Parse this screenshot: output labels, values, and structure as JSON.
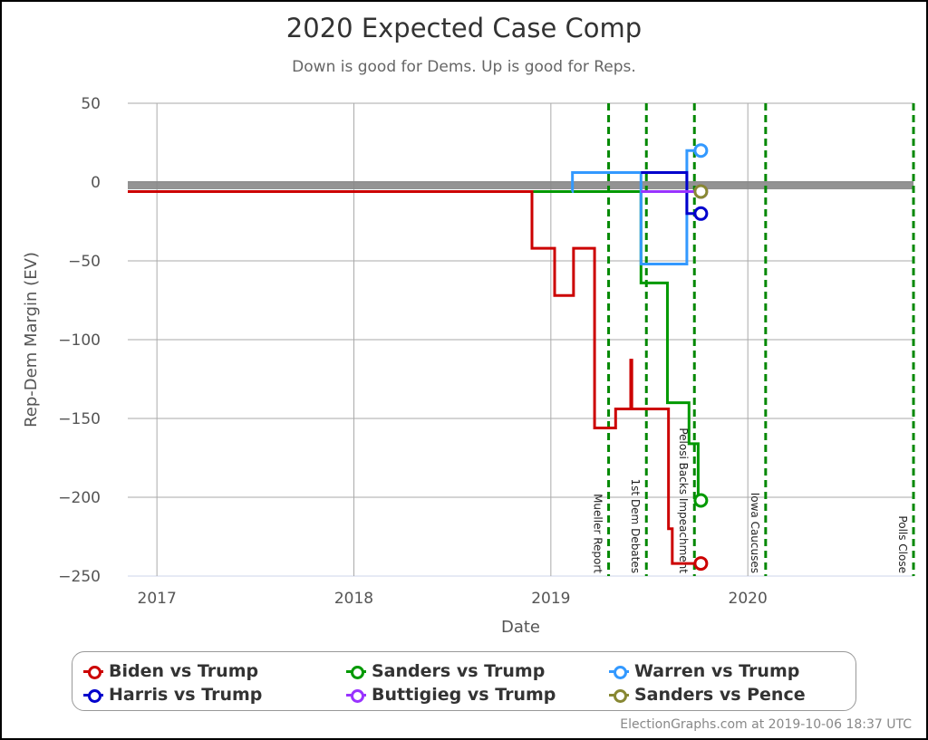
{
  "chart_data": {
    "type": "line",
    "title": "2020 Expected Case Comp",
    "subtitle": "Down is good for Dems. Up is good for Reps.",
    "xlabel": "Date",
    "ylabel": "Rep-Dem Margin (EV)",
    "xlim": [
      "2016-11-08",
      "2020-11-03"
    ],
    "ylim": [
      -250,
      50
    ],
    "x_ticks": [
      {
        "date": "2017-01-01",
        "label": "2017"
      },
      {
        "date": "2018-01-01",
        "label": "2018"
      },
      {
        "date": "2019-01-01",
        "label": "2019"
      },
      {
        "date": "2020-01-01",
        "label": "2020"
      }
    ],
    "y_ticks": [
      50,
      0,
      -50,
      -100,
      -150,
      -200,
      -250
    ],
    "y_tick_labels": [
      "50",
      "0",
      "−50",
      "−100",
      "−150",
      "−200",
      "−250"
    ],
    "grid": true,
    "legend_placement": "bottom",
    "reference_band": {
      "value": -2,
      "color": "#888888"
    },
    "events": [
      {
        "date": "2019-04-18",
        "label": "Mueller Report"
      },
      {
        "date": "2019-06-27",
        "label": "1st Dem Debates"
      },
      {
        "date": "2019-09-24",
        "label": "Pelosi Backs Impeachment"
      },
      {
        "date": "2020-02-03",
        "label": "Iowa Caucuses"
      },
      {
        "date": "2020-11-03",
        "label": "Polls Close"
      }
    ],
    "event_color": "#008800",
    "series": [
      {
        "name": "Sanders vs Trump",
        "color": "#009900",
        "steps": [
          [
            "2016-11-08",
            -6
          ],
          [
            "2019-06-17",
            -64
          ],
          [
            "2019-08-05",
            -140
          ],
          [
            "2019-09-14",
            -166
          ],
          [
            "2019-10-01",
            -202
          ]
        ],
        "end": [
          "2019-10-06",
          -202
        ]
      },
      {
        "name": "Warren vs Trump",
        "color": "#3399ff",
        "steps": [
          [
            "2019-02-09",
            -6
          ],
          [
            "2019-02-10",
            6
          ],
          [
            "2019-06-17",
            -52
          ],
          [
            "2019-09-10",
            20
          ]
        ],
        "end": [
          "2019-10-06",
          20
        ]
      },
      {
        "name": "Harris vs Trump",
        "color": "#0000cc",
        "steps": [
          [
            "2019-06-17",
            6
          ],
          [
            "2019-09-10",
            -20
          ]
        ],
        "end": [
          "2019-10-06",
          -20
        ]
      },
      {
        "name": "Buttigieg vs Trump",
        "color": "#9933ff",
        "steps": [
          [
            "2019-06-17",
            -6
          ]
        ],
        "end": [
          "2019-10-06",
          -6
        ]
      },
      {
        "name": "Sanders vs Pence",
        "color": "#888833",
        "steps": [
          [
            "2019-10-05",
            -6
          ]
        ],
        "end": [
          "2019-10-06",
          -6
        ]
      },
      {
        "name": "Biden vs Trump",
        "color": "#cc0000",
        "steps": [
          [
            "2016-11-08",
            -6
          ],
          [
            "2018-11-27",
            -42
          ],
          [
            "2019-01-08",
            -72
          ],
          [
            "2019-02-12",
            -42
          ],
          [
            "2019-03-23",
            -156
          ],
          [
            "2019-05-01",
            -144
          ],
          [
            "2019-05-29",
            -113
          ],
          [
            "2019-05-31",
            -144
          ],
          [
            "2019-08-07",
            -220
          ],
          [
            "2019-08-14",
            -242
          ]
        ],
        "end": [
          "2019-10-06",
          -242
        ]
      }
    ]
  },
  "legend": [
    {
      "label": "Biden vs Trump",
      "color": "#cc0000"
    },
    {
      "label": "Sanders vs Trump",
      "color": "#009900"
    },
    {
      "label": "Warren vs Trump",
      "color": "#3399ff"
    },
    {
      "label": "Harris vs Trump",
      "color": "#0000cc"
    },
    {
      "label": "Buttigieg vs Trump",
      "color": "#9933ff"
    },
    {
      "label": "Sanders vs Pence",
      "color": "#888833"
    }
  ],
  "credit": "ElectionGraphs.com at 2019-10-06 18:37 UTC"
}
